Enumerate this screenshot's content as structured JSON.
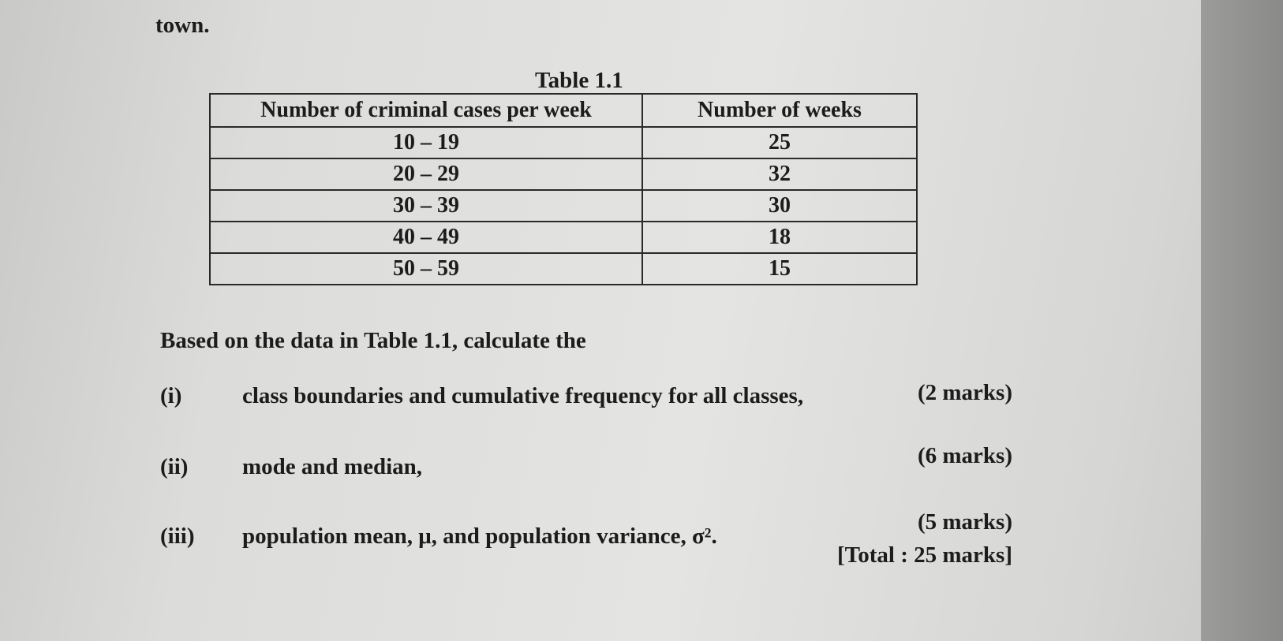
{
  "intro_fragment": "town.",
  "table": {
    "title": "Table 1.1",
    "headers": [
      "Number of criminal cases per week",
      "Number of weeks"
    ],
    "rows": [
      [
        "10 – 19",
        25
      ],
      [
        "20 – 29",
        32
      ],
      [
        "30 – 39",
        30
      ],
      [
        "40 – 49",
        18
      ],
      [
        "50 – 59",
        15
      ]
    ]
  },
  "instruction": "Based on the data in Table 1.1, calculate the",
  "questions": [
    {
      "label": "(i)",
      "text": "class boundaries and cumulative frequency for all classes,",
      "marks": "(2 marks)"
    },
    {
      "label": "(ii)",
      "text": "mode and median,",
      "marks": "(6 marks)"
    },
    {
      "label": "(iii)",
      "text": "population mean, μ, and population variance, σ².",
      "marks": "(5 marks)"
    }
  ],
  "total": "[Total : 25 marks]"
}
